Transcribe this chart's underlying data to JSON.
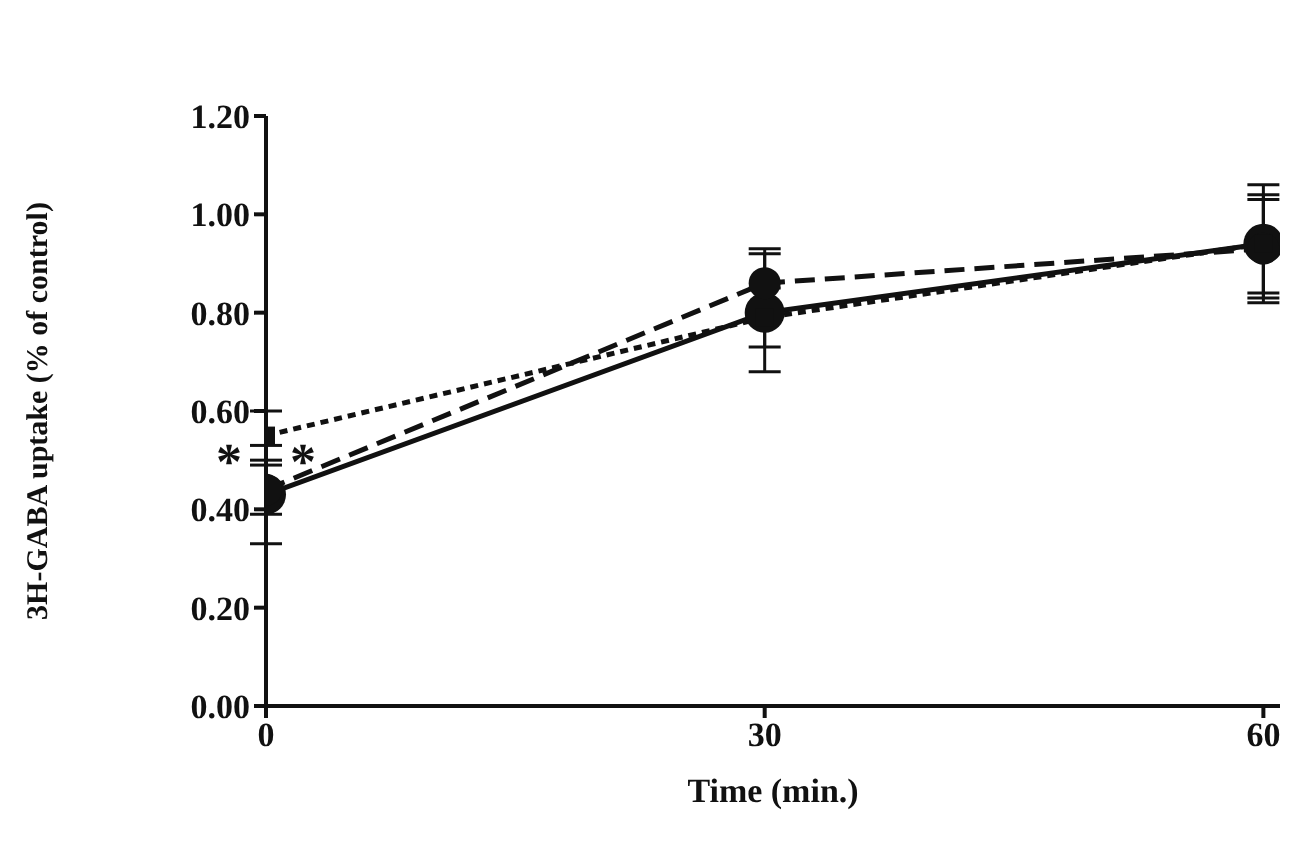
{
  "chart_data": {
    "type": "line",
    "xlabel": "Time (min.)",
    "ylabel": "3H-GABA uptake (% of control)",
    "x": [
      0,
      30,
      60
    ],
    "xlim": [
      0,
      61
    ],
    "xticks": [
      0,
      30,
      60
    ],
    "ylim": [
      0,
      1.2
    ],
    "yticks": [
      {
        "value": 0,
        "label": "0.00"
      },
      {
        "value": 0.2,
        "label": "0.20"
      },
      {
        "value": 0.4,
        "label": "0.40"
      },
      {
        "value": 0.6,
        "label": "0.60"
      },
      {
        "value": 0.8,
        "label": "0.80"
      },
      {
        "value": 1,
        "label": "1.00"
      },
      {
        "value": 1.2,
        "label": "1.20"
      }
    ],
    "grid": false,
    "legend": false,
    "series": [
      {
        "color": "#111111",
        "values": [
          0.43,
          0.8,
          0.94
        ],
        "errors": [
          0.1,
          0.12,
          0.12
        ],
        "marker": "circle",
        "line_style": "solid"
      },
      {
        "color": "#111111",
        "values": [
          0.44,
          0.86,
          0.93
        ],
        "errors": [
          0.05,
          0.07,
          0.1
        ],
        "marker": "circle",
        "line_style": "dashed"
      },
      {
        "color": "#111111",
        "values": [
          0.55,
          0.79,
          0.94
        ],
        "errors": [
          0.05,
          0.06,
          0.1
        ],
        "marker": "square",
        "line_style": "dotted"
      }
    ],
    "annotations": [
      {
        "text": "**",
        "x": 0,
        "y": 0.5
      }
    ]
  }
}
